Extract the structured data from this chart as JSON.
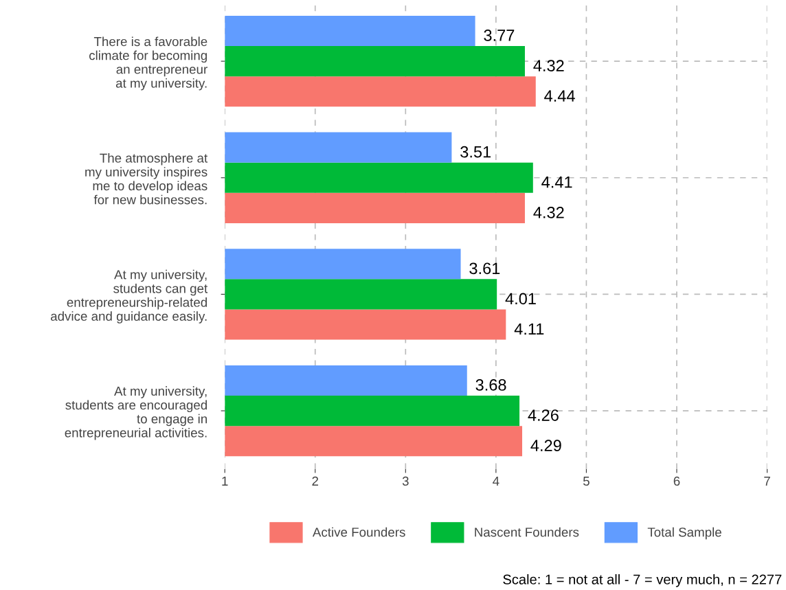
{
  "chart_data": {
    "type": "bar",
    "orientation": "horizontal",
    "categories": [
      "There is a favorable\nclimate for becoming\nan entrepreneur\nat my university.",
      "The atmosphere at\nmy university inspires\nme to develop ideas\nfor new businesses.",
      "At my university,\nstudents can get\nentrepreneurship-related\nadvice and guidance easily.",
      "At my university,\nstudents are encouraged\nto engage in\nentrepreneurial activities."
    ],
    "series": [
      {
        "name": "Active Founders",
        "color": "#f8766d",
        "values": [
          4.44,
          4.32,
          4.11,
          4.29
        ]
      },
      {
        "name": "Nascent Founders",
        "color": "#00ba38",
        "values": [
          4.32,
          4.41,
          4.01,
          4.26
        ]
      },
      {
        "name": "Total Sample",
        "color": "#619cff",
        "values": [
          3.77,
          3.51,
          3.61,
          3.68
        ]
      }
    ],
    "xlim": [
      1,
      7
    ],
    "xticks": [
      1,
      2,
      3,
      4,
      5,
      6,
      7
    ],
    "data_labels": true,
    "grid": true,
    "legend": "bottom",
    "annotations": [
      "Scale: 1 = not at all - 7 = very much, n = 2277"
    ]
  }
}
